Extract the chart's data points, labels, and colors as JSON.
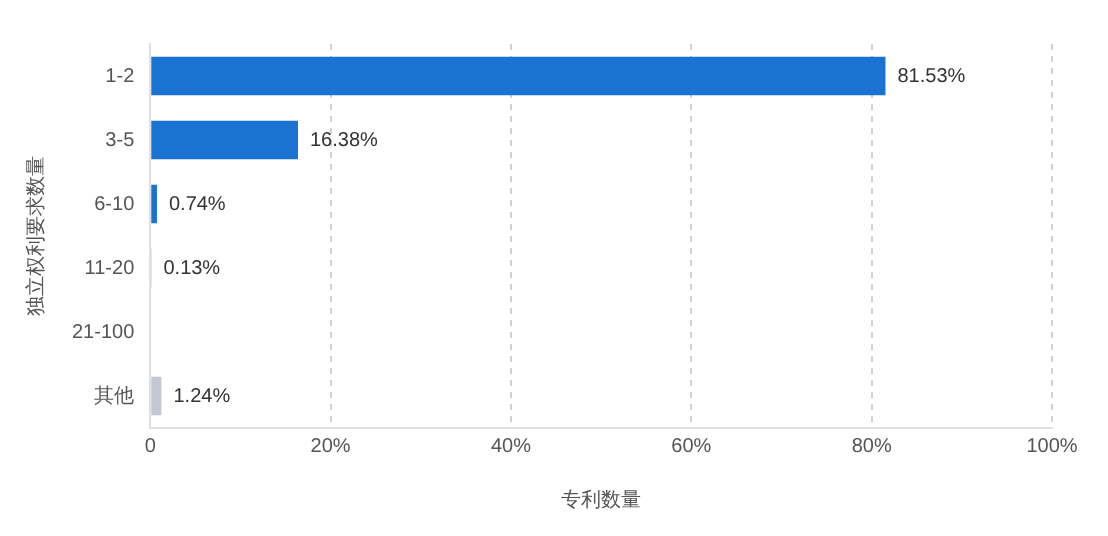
{
  "chart_data": {
    "type": "bar",
    "orientation": "horizontal",
    "xlabel": "专利数量",
    "ylabel": "独立权利要求数量",
    "categories": [
      "1-2",
      "3-5",
      "6-10",
      "11-20",
      "21-100",
      "其他"
    ],
    "values": [
      81.53,
      16.38,
      0.74,
      0.13,
      0,
      1.24
    ],
    "value_labels": [
      "81.53%",
      "16.38%",
      "0.74%",
      "0.13%",
      null,
      "1.24%"
    ],
    "colors": [
      "#1a73d1",
      "#1a73d1",
      "#1a73d1",
      "#1a73d1",
      "#1a73d1",
      "#c3c8d2"
    ],
    "xlim": [
      0,
      100
    ],
    "xticks": [
      0,
      {
        "value": 20,
        "label": "20%"
      },
      {
        "value": 40,
        "label": "40%"
      },
      {
        "value": 60,
        "label": "60%"
      },
      {
        "value": 80,
        "label": "80%"
      },
      {
        "value": 100,
        "label": "100%"
      }
    ],
    "grid": "x"
  }
}
